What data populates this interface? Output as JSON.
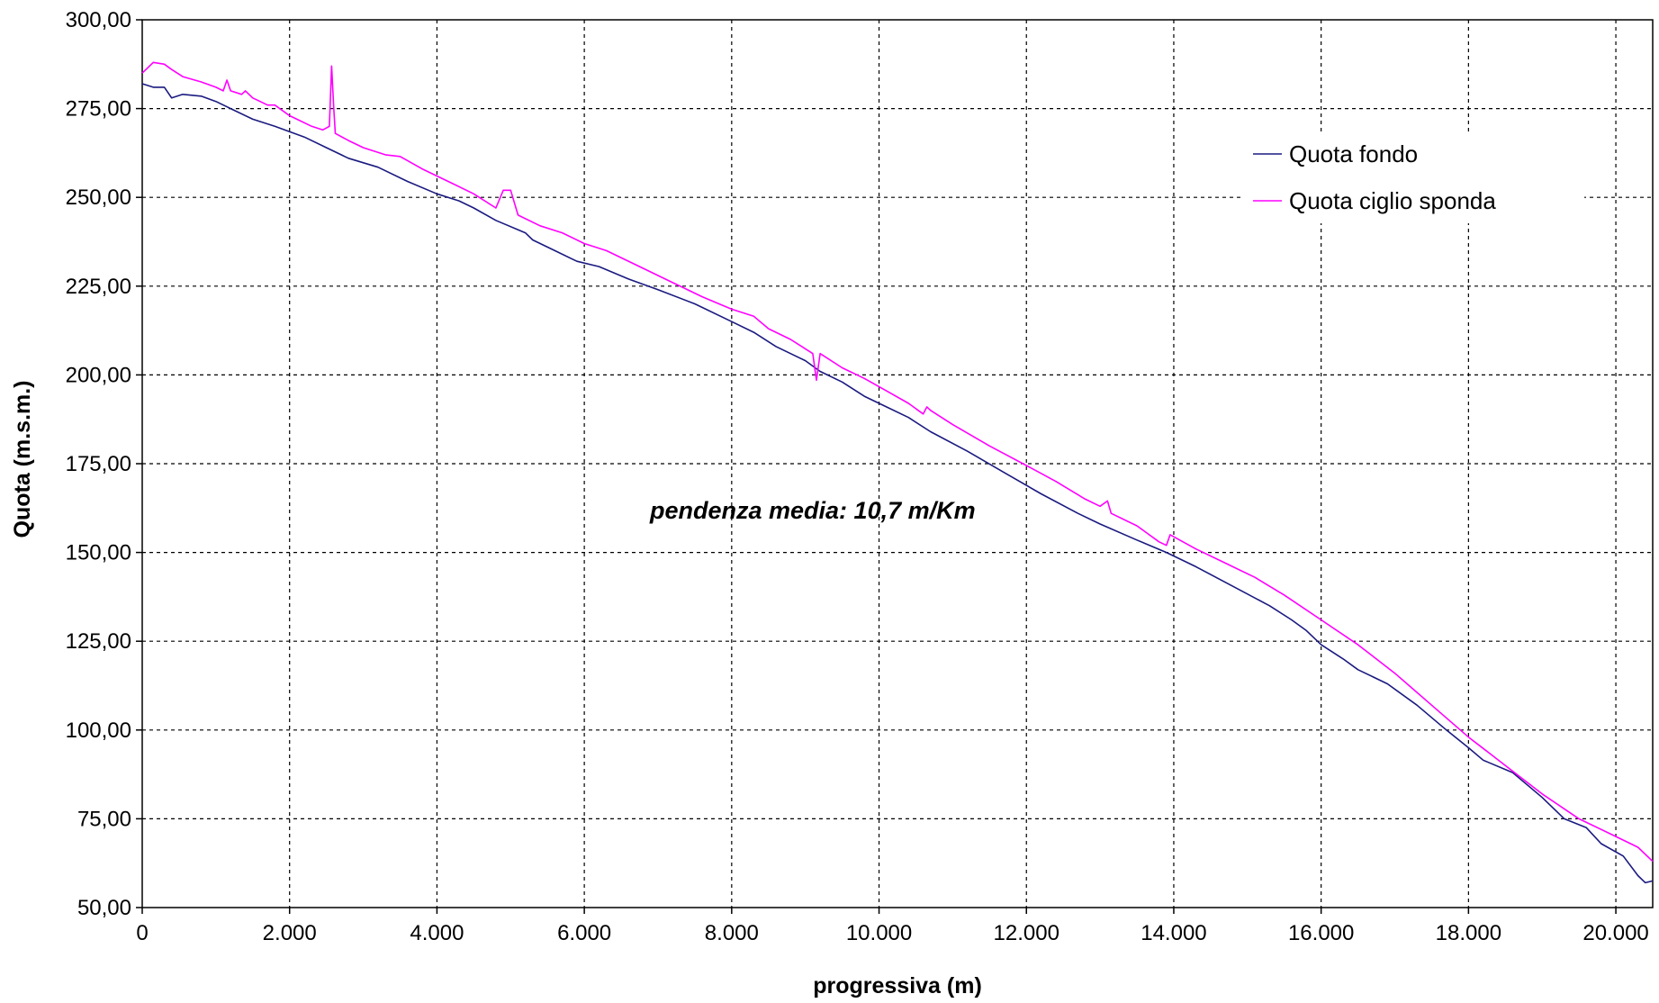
{
  "chart_data": {
    "type": "line",
    "title": "",
    "xlabel": "progressiva (m)",
    "ylabel": "Quota (m.s.m.)",
    "xlim": [
      0,
      20500
    ],
    "ylim": [
      50,
      300
    ],
    "x_ticks": [
      0,
      2000,
      4000,
      6000,
      8000,
      10000,
      12000,
      14000,
      16000,
      18000,
      20000
    ],
    "x_tick_labels": [
      "0",
      "2.000",
      "4.000",
      "6.000",
      "8.000",
      "10.000",
      "12.000",
      "14.000",
      "16.000",
      "18.000",
      "20.000"
    ],
    "y_ticks": [
      50,
      75,
      100,
      125,
      150,
      175,
      200,
      225,
      250,
      275,
      300
    ],
    "y_tick_labels": [
      "50,00",
      "75,00",
      "100,00",
      "125,00",
      "150,00",
      "175,00",
      "200,00",
      "225,00",
      "250,00",
      "275,00",
      "300,00"
    ],
    "grid": true,
    "legend_position": "top-right",
    "annotation": "pendenza media: 10,7 m/Km",
    "series": [
      {
        "name": "Quota fondo",
        "color": "#1a1a80",
        "points": [
          [
            0,
            282
          ],
          [
            150,
            281
          ],
          [
            300,
            281
          ],
          [
            400,
            278
          ],
          [
            550,
            279
          ],
          [
            800,
            278.5
          ],
          [
            1000,
            277
          ],
          [
            1200,
            275
          ],
          [
            1500,
            272
          ],
          [
            1800,
            270
          ],
          [
            2200,
            267
          ],
          [
            2500,
            264
          ],
          [
            2800,
            261
          ],
          [
            3200,
            258.5
          ],
          [
            3600,
            254.5
          ],
          [
            4000,
            251
          ],
          [
            4300,
            249
          ],
          [
            4500,
            247
          ],
          [
            4800,
            243.5
          ],
          [
            5200,
            240
          ],
          [
            5300,
            238
          ],
          [
            5600,
            235
          ],
          [
            5900,
            232
          ],
          [
            6200,
            230.5
          ],
          [
            6600,
            227
          ],
          [
            7000,
            224
          ],
          [
            7500,
            220
          ],
          [
            8000,
            215
          ],
          [
            8300,
            212
          ],
          [
            8600,
            208
          ],
          [
            9000,
            204
          ],
          [
            9200,
            201
          ],
          [
            9500,
            198
          ],
          [
            9800,
            194
          ],
          [
            10100,
            191
          ],
          [
            10400,
            188
          ],
          [
            10700,
            184
          ],
          [
            11200,
            178.5
          ],
          [
            11700,
            172.5
          ],
          [
            12200,
            166.5
          ],
          [
            12700,
            161
          ],
          [
            13000,
            158
          ],
          [
            13500,
            153.5
          ],
          [
            13900,
            150
          ],
          [
            14300,
            146
          ],
          [
            14800,
            140.5
          ],
          [
            15300,
            135
          ],
          [
            15600,
            131
          ],
          [
            15800,
            128
          ],
          [
            16000,
            124
          ],
          [
            16300,
            120
          ],
          [
            16500,
            117
          ],
          [
            16900,
            113
          ],
          [
            17300,
            107
          ],
          [
            17700,
            100
          ],
          [
            18000,
            95
          ],
          [
            18200,
            91.5
          ],
          [
            18600,
            88
          ],
          [
            19000,
            81
          ],
          [
            19300,
            75
          ],
          [
            19600,
            72.5
          ],
          [
            19800,
            68
          ],
          [
            20100,
            64.5
          ],
          [
            20300,
            59
          ],
          [
            20400,
            57
          ],
          [
            20500,
            57.5
          ]
        ]
      },
      {
        "name": "Quota ciglio sponda",
        "color": "#ff00ff",
        "points": [
          [
            0,
            285
          ],
          [
            150,
            288
          ],
          [
            300,
            287.5
          ],
          [
            400,
            286
          ],
          [
            550,
            284
          ],
          [
            800,
            282.5
          ],
          [
            1000,
            281
          ],
          [
            1100,
            280
          ],
          [
            1150,
            283
          ],
          [
            1200,
            280
          ],
          [
            1350,
            279
          ],
          [
            1400,
            280
          ],
          [
            1500,
            278
          ],
          [
            1600,
            277
          ],
          [
            1700,
            276
          ],
          [
            1800,
            276
          ],
          [
            2000,
            273
          ],
          [
            2300,
            270
          ],
          [
            2450,
            269
          ],
          [
            2540,
            270
          ],
          [
            2570,
            287
          ],
          [
            2600,
            275
          ],
          [
            2620,
            268
          ],
          [
            2800,
            266
          ],
          [
            3000,
            264
          ],
          [
            3300,
            262
          ],
          [
            3500,
            261.5
          ],
          [
            3800,
            258
          ],
          [
            4200,
            254
          ],
          [
            4500,
            251
          ],
          [
            4800,
            247
          ],
          [
            4900,
            252
          ],
          [
            5000,
            252
          ],
          [
            5100,
            245
          ],
          [
            5400,
            242
          ],
          [
            5700,
            240
          ],
          [
            6000,
            237
          ],
          [
            6300,
            235
          ],
          [
            6700,
            231
          ],
          [
            7200,
            226
          ],
          [
            7600,
            222
          ],
          [
            8000,
            218.5
          ],
          [
            8300,
            216.5
          ],
          [
            8500,
            213
          ],
          [
            8800,
            210
          ],
          [
            9100,
            206
          ],
          [
            9150,
            198.5
          ],
          [
            9200,
            206
          ],
          [
            9500,
            202
          ],
          [
            9800,
            199
          ],
          [
            10100,
            195.5
          ],
          [
            10400,
            192
          ],
          [
            10600,
            189
          ],
          [
            10650,
            191
          ],
          [
            10700,
            190
          ],
          [
            11000,
            186
          ],
          [
            11500,
            180
          ],
          [
            12000,
            174.5
          ],
          [
            12400,
            170
          ],
          [
            12800,
            165
          ],
          [
            13000,
            163
          ],
          [
            13100,
            164.5
          ],
          [
            13150,
            161
          ],
          [
            13500,
            157.5
          ],
          [
            13800,
            153
          ],
          [
            13900,
            152
          ],
          [
            13950,
            155
          ],
          [
            14300,
            151
          ],
          [
            14700,
            147
          ],
          [
            15100,
            143
          ],
          [
            15500,
            138
          ],
          [
            16000,
            131
          ],
          [
            16500,
            124
          ],
          [
            17000,
            116
          ],
          [
            17500,
            107
          ],
          [
            18000,
            98
          ],
          [
            18500,
            90
          ],
          [
            19000,
            82
          ],
          [
            19500,
            75
          ],
          [
            20000,
            70
          ],
          [
            20300,
            67
          ],
          [
            20500,
            63
          ]
        ]
      }
    ]
  }
}
